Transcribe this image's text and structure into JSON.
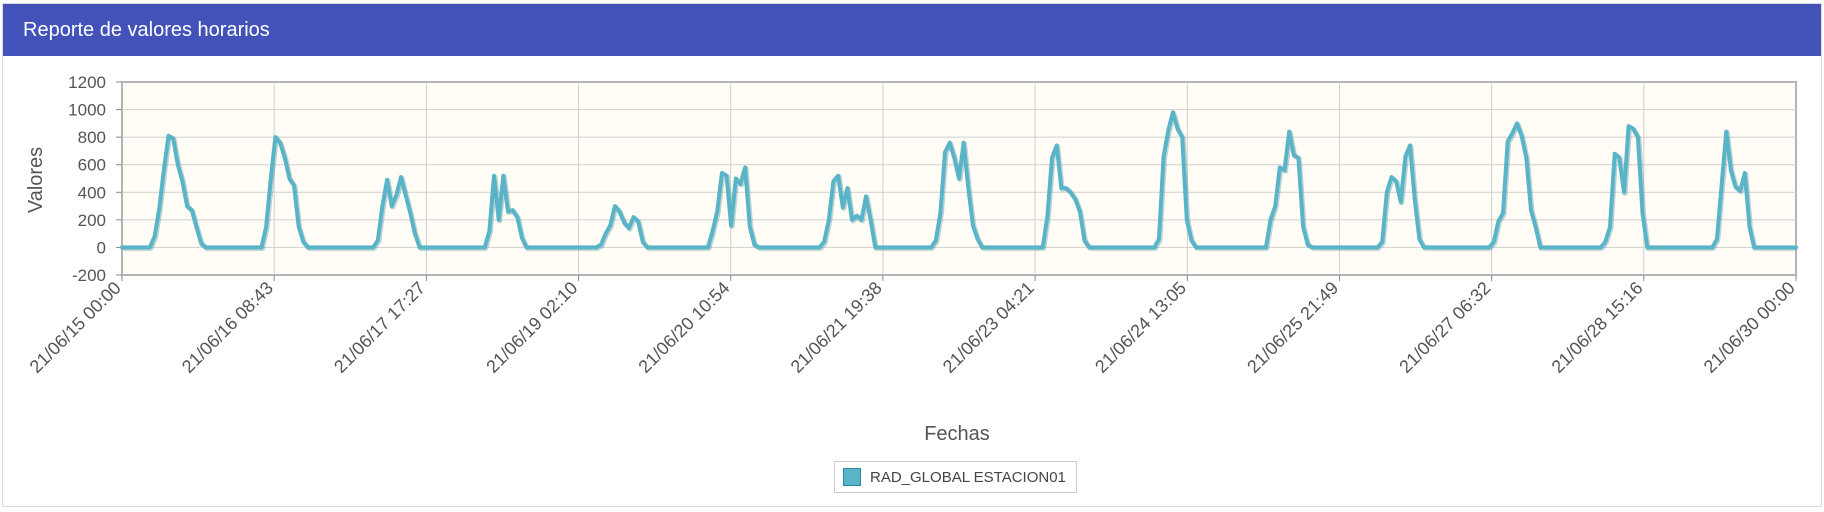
{
  "panel": {
    "title": "Reporte de valores horarios"
  },
  "colors": {
    "header": "#4352b9",
    "series": "#5ab4c8",
    "plot_background": "#fffdf5",
    "grid": "#d0d0d0"
  },
  "chart_data": {
    "type": "line",
    "title": "",
    "xlabel": "Fechas",
    "ylabel": "Valores",
    "ylim": [
      -200,
      1200
    ],
    "yticks": [
      1200,
      1000,
      800,
      600,
      400,
      200,
      0,
      -200
    ],
    "xlim_days": [
      0,
      15
    ],
    "xticks": [
      "21/06/15 00:00",
      "21/06/16 08:43",
      "21/06/17 17:27",
      "21/06/19 02:10",
      "21/06/20 10:54",
      "21/06/21 19:38",
      "21/06/23 04:21",
      "21/06/24 13:05",
      "21/06/25 21:49",
      "21/06/27 06:32",
      "21/06/28 15:16",
      "21/06/30 00:00"
    ],
    "grid": true,
    "legend": "bottom-center",
    "series": [
      {
        "name": "RAD_GLOBAL ESTACION01",
        "day_profiles": [
          [
            0,
            0,
            0,
            0,
            0,
            0,
            0,
            80,
            280,
            560,
            810,
            790,
            600,
            480,
            300,
            270,
            150,
            30,
            0,
            0,
            0,
            0,
            0,
            0
          ],
          [
            0,
            0,
            0,
            0,
            0,
            0,
            0,
            150,
            500,
            800,
            760,
            650,
            500,
            450,
            150,
            40,
            0,
            0,
            0,
            0,
            0,
            0,
            0,
            0
          ],
          [
            0,
            0,
            0,
            0,
            0,
            0,
            0,
            50,
            300,
            490,
            300,
            380,
            510,
            380,
            250,
            100,
            0,
            0,
            0,
            0,
            0,
            0,
            0,
            0
          ],
          [
            0,
            0,
            0,
            0,
            0,
            0,
            0,
            120,
            520,
            200,
            520,
            260,
            270,
            220,
            70,
            0,
            0,
            0,
            0,
            0,
            0,
            0,
            0,
            0
          ],
          [
            0,
            0,
            0,
            0,
            0,
            0,
            0,
            20,
            100,
            160,
            300,
            260,
            180,
            140,
            220,
            190,
            40,
            0,
            0,
            0,
            0,
            0,
            0,
            0
          ],
          [
            0,
            0,
            0,
            0,
            0,
            0,
            0,
            120,
            260,
            540,
            520,
            160,
            500,
            460,
            580,
            150,
            20,
            0,
            0,
            0,
            0,
            0,
            0,
            0
          ],
          [
            0,
            0,
            0,
            0,
            0,
            0,
            0,
            40,
            200,
            480,
            520,
            290,
            430,
            200,
            230,
            200,
            370,
            200,
            0,
            0,
            0,
            0,
            0,
            0
          ],
          [
            0,
            0,
            0,
            0,
            0,
            0,
            0,
            50,
            250,
            690,
            760,
            650,
            500,
            760,
            430,
            160,
            60,
            0,
            0,
            0,
            0,
            0,
            0,
            0
          ],
          [
            0,
            0,
            0,
            0,
            0,
            0,
            0,
            220,
            650,
            740,
            430,
            430,
            400,
            350,
            260,
            50,
            0,
            0,
            0,
            0,
            0,
            0,
            0,
            0
          ],
          [
            0,
            0,
            0,
            0,
            0,
            0,
            0,
            60,
            660,
            850,
            980,
            860,
            800,
            200,
            50,
            0,
            0,
            0,
            0,
            0,
            0,
            0,
            0,
            0
          ],
          [
            0,
            0,
            0,
            0,
            0,
            0,
            0,
            200,
            300,
            580,
            560,
            840,
            670,
            650,
            150,
            20,
            0,
            0,
            0,
            0,
            0,
            0,
            0,
            0
          ],
          [
            0,
            0,
            0,
            0,
            0,
            0,
            0,
            40,
            400,
            510,
            480,
            330,
            660,
            740,
            350,
            60,
            0,
            0,
            0,
            0,
            0,
            0,
            0,
            0
          ],
          [
            0,
            0,
            0,
            0,
            0,
            0,
            0,
            40,
            190,
            250,
            770,
            830,
            900,
            810,
            650,
            270,
            150,
            0,
            0,
            0,
            0,
            0,
            0,
            0
          ],
          [
            0,
            0,
            0,
            0,
            0,
            0,
            0,
            40,
            150,
            680,
            650,
            400,
            880,
            860,
            800,
            250,
            0,
            0,
            0,
            0,
            0,
            0,
            0,
            0
          ],
          [
            0,
            0,
            0,
            0,
            0,
            0,
            0,
            60,
            450,
            840,
            560,
            440,
            410,
            540,
            150,
            0,
            0,
            0,
            0,
            0,
            0,
            0,
            0,
            0
          ]
        ]
      }
    ]
  }
}
